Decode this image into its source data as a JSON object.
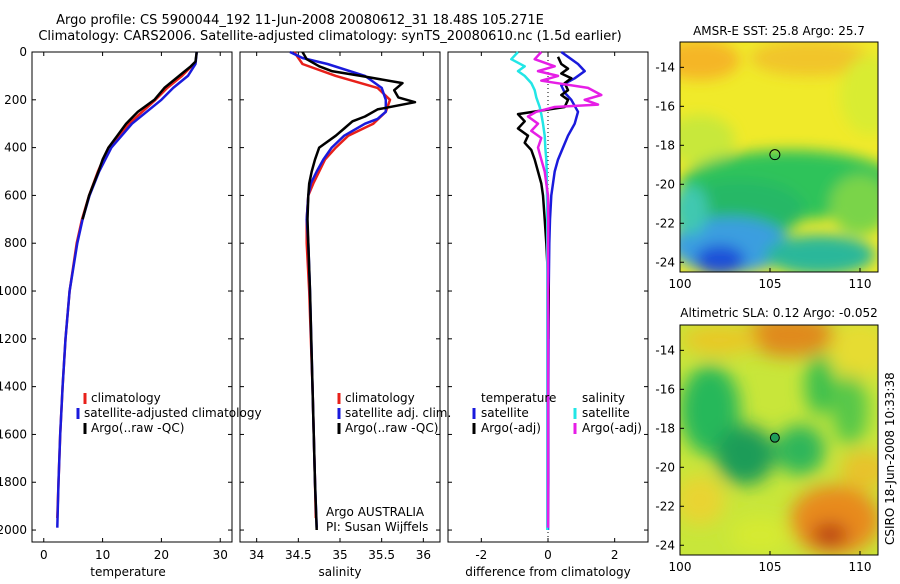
{
  "title": {
    "line1": "Argo profile: CS 5900044_192 11-Jun-2008 20080612_31 18.48S 105.271E",
    "line2": "Climatology: CARS2006. Satellite-adjusted climatology: synTS_20080610.nc (1.5d earlier)"
  },
  "side_label": "CSIRO 18-Jun-2008 10:33:38",
  "colors": {
    "red": "#e8201a",
    "blue": "#1a1adc",
    "black": "#000000",
    "cyan": "#22e6e6",
    "magenta": "#e61ee6"
  },
  "chart_data": [
    {
      "type": "line",
      "id": "temperature",
      "xlabel": "temperature",
      "xlim": [
        -2,
        32
      ],
      "xticks": [
        0,
        10,
        20,
        30
      ],
      "ylim": [
        2050,
        0
      ],
      "yticks": [
        0,
        200,
        400,
        600,
        800,
        1000,
        1200,
        1400,
        1600,
        1800,
        2000
      ],
      "series": [
        {
          "name": "climatology",
          "color": "red",
          "depth": [
            50,
            100,
            150,
            200,
            300,
            400,
            500,
            600,
            700,
            800,
            1000,
            1200,
            1400,
            1600,
            1800,
            1950
          ],
          "values": [
            25.5,
            23.5,
            21,
            19,
            14.5,
            11,
            9.2,
            7.7,
            6.5,
            5.6,
            4.4,
            3.7,
            3.2,
            2.8,
            2.5,
            2.3
          ]
        },
        {
          "name": "satellite-adjusted climatology",
          "color": "blue",
          "depth": [
            0,
            50,
            100,
            150,
            200,
            300,
            400,
            500,
            600,
            700,
            800,
            1000,
            1200,
            1400,
            1600,
            1800,
            1990
          ],
          "values": [
            26,
            25.8,
            24.5,
            22,
            20,
            15,
            11.5,
            9.4,
            7.8,
            6.6,
            5.7,
            4.4,
            3.7,
            3.2,
            2.8,
            2.5,
            2.3
          ]
        },
        {
          "name": "Argo(..raw -QC)",
          "color": "black",
          "depth": [
            0,
            40,
            60,
            80,
            100,
            150,
            200,
            250,
            300,
            350,
            400,
            450,
            500,
            600,
            700
          ],
          "values": [
            26,
            25.8,
            25,
            24,
            23,
            20.5,
            18.8,
            16,
            14,
            12.5,
            11,
            10,
            9.3,
            7.7,
            6.6
          ]
        }
      ],
      "legend": [
        "climatology",
        "satellite-adjusted climatology",
        "Argo(..raw -QC)"
      ]
    },
    {
      "type": "line",
      "id": "salinity",
      "xlabel": "salinity",
      "xlim": [
        33.8,
        36.2
      ],
      "xticks": [
        34,
        34.5,
        35,
        35.5,
        36
      ],
      "ylim": [
        2050,
        0
      ],
      "series": [
        {
          "name": "climatology",
          "color": "red",
          "depth": [
            0,
            50,
            100,
            150,
            200,
            250,
            300,
            350,
            400,
            450,
            500,
            550,
            600,
            700,
            800,
            1000,
            1400,
            1800,
            1950
          ],
          "values": [
            34.45,
            34.55,
            34.95,
            35.45,
            35.6,
            35.55,
            35.4,
            35.1,
            34.95,
            34.82,
            34.75,
            34.68,
            34.62,
            34.6,
            34.6,
            34.63,
            34.67,
            34.7,
            34.71
          ]
        },
        {
          "name": "satellite adj. clim.",
          "color": "blue",
          "depth": [
            0,
            25,
            50,
            100,
            150,
            200,
            250,
            280,
            300,
            350,
            400,
            450,
            500,
            550,
            600,
            700,
            800,
            1000,
            1400,
            1800,
            1990
          ],
          "values": [
            34.4,
            34.55,
            34.85,
            35.3,
            35.5,
            35.55,
            35.55,
            35.45,
            35.3,
            35.05,
            34.9,
            34.8,
            34.72,
            34.65,
            34.62,
            34.6,
            34.62,
            34.64,
            34.67,
            34.7,
            34.72
          ]
        },
        {
          "name": "Argo(..raw -QC)",
          "color": "black",
          "depth": [
            0,
            30,
            60,
            80,
            100,
            130,
            160,
            190,
            210,
            240,
            270,
            290,
            320,
            350,
            400,
            450,
            500,
            550,
            600,
            700,
            800,
            1000,
            1400,
            1800,
            2000
          ],
          "values": [
            34.55,
            34.6,
            34.75,
            34.9,
            35.25,
            35.75,
            35.65,
            35.7,
            35.9,
            35.45,
            35.3,
            35.15,
            35.05,
            34.95,
            34.75,
            34.7,
            34.66,
            34.63,
            34.62,
            34.61,
            34.62,
            34.64,
            34.67,
            34.7,
            34.72
          ]
        }
      ],
      "legend": [
        "climatology",
        "satellite adj. clim.",
        "Argo(..raw -QC)"
      ],
      "annotations": [
        "Argo AUSTRALIA",
        "PI: Susan Wijffels"
      ]
    },
    {
      "type": "line",
      "id": "difference",
      "xlabel": "difference from climatology",
      "xlim": [
        -3,
        3
      ],
      "xticks": [
        -2,
        0,
        2
      ],
      "ylim": [
        2050,
        0
      ],
      "series": [
        {
          "name": "temperature satellite",
          "color": "blue",
          "depth": [
            0,
            20,
            50,
            80,
            110,
            140,
            170,
            200,
            250,
            300,
            350,
            400,
            450,
            500,
            550,
            600,
            700,
            800,
            1000,
            1400,
            1800,
            2000
          ],
          "values": [
            0.4,
            0.6,
            0.9,
            1.1,
            0.8,
            0.4,
            0.5,
            0.7,
            0.9,
            0.8,
            0.6,
            0.45,
            0.3,
            0.2,
            0.15,
            0.1,
            0.06,
            0.04,
            0.02,
            0.01,
            0.01,
            0
          ]
        },
        {
          "name": "temperature Argo(-adj)",
          "color": "black",
          "depth": [
            20,
            50,
            70,
            90,
            110,
            130,
            160,
            180,
            200,
            230,
            260,
            290,
            320,
            350,
            380,
            410,
            450,
            500,
            550,
            600,
            700,
            800,
            1000,
            1200
          ],
          "values": [
            0.3,
            0.4,
            0.6,
            0.4,
            0.7,
            0.5,
            0.6,
            0.4,
            0.6,
            0.5,
            -0.9,
            -0.7,
            -0.9,
            -0.6,
            -0.7,
            -0.5,
            -0.4,
            -0.3,
            -0.2,
            -0.15,
            -0.1,
            -0.05,
            0.02,
            0
          ]
        },
        {
          "name": "salinity satellite",
          "color": "cyan",
          "depth": [
            0,
            30,
            60,
            80,
            100,
            130,
            160,
            190,
            230,
            260,
            300,
            350,
            400,
            450,
            500,
            600,
            700,
            800,
            1000,
            1400,
            1800,
            2000
          ],
          "values": [
            -0.9,
            -1.1,
            -0.7,
            -0.9,
            -0.7,
            -0.5,
            -0.4,
            -0.35,
            -0.25,
            -0.2,
            -0.15,
            -0.1,
            -0.08,
            -0.05,
            -0.04,
            -0.03,
            -0.02,
            -0.02,
            -0.02,
            -0.02,
            -0.02,
            -0.02
          ]
        },
        {
          "name": "salinity Argo(-adj)",
          "color": "magenta",
          "depth": [
            0,
            30,
            60,
            80,
            100,
            120,
            150,
            180,
            200,
            220,
            230,
            250,
            270,
            300,
            330,
            360,
            400,
            450,
            500,
            550,
            600,
            700,
            800,
            1000,
            1400,
            1800,
            1990
          ],
          "values": [
            -0.2,
            -0.4,
            0.2,
            -0.3,
            0.3,
            -0.2,
            1.2,
            1.6,
            1.1,
            1.5,
            0.2,
            -0.35,
            -0.6,
            -0.3,
            -0.5,
            -0.2,
            -0.3,
            -0.2,
            -0.1,
            -0.05,
            0,
            0.01,
            0,
            0,
            0,
            0,
            0
          ]
        }
      ],
      "legend_headers": [
        "temperature",
        "salinity"
      ],
      "legend": [
        "satellite",
        "Argo(-adj)",
        "satellite",
        "Argo(-adj)"
      ]
    },
    {
      "type": "heatmap",
      "id": "sst_map",
      "title": "AMSR-E SST: 25.8 Argo: 25.7",
      "xlim": [
        100,
        111
      ],
      "xticks": [
        100,
        105,
        110
      ],
      "ylim": [
        -24.5,
        -12.7
      ],
      "yticks": [
        -14,
        -16,
        -18,
        -20,
        -22,
        -24
      ],
      "marker": {
        "lon": 105.27,
        "lat": -18.48
      }
    },
    {
      "type": "heatmap",
      "id": "sla_map",
      "title": "Altimetric SLA: 0.12 Argo: -0.052",
      "xlim": [
        100,
        111
      ],
      "xticks": [
        100,
        105,
        110
      ],
      "ylim": [
        -24.5,
        -12.7
      ],
      "yticks": [
        -14,
        -16,
        -18,
        -20,
        -22,
        -24
      ],
      "marker": {
        "lon": 105.27,
        "lat": -18.48
      }
    }
  ]
}
